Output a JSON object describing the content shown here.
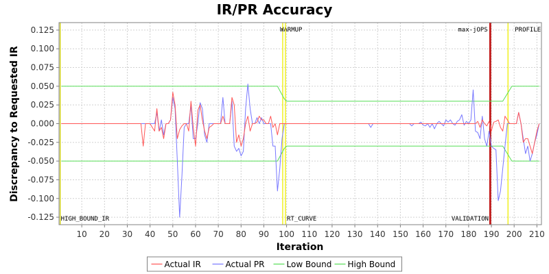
{
  "chart_data": {
    "type": "line",
    "title": "IR/PR Accuracy",
    "xlabel": "Iteration",
    "ylabel": "Discrepancy to Requested IR",
    "xlim": [
      0,
      212
    ],
    "ylim": [
      -0.135,
      0.135
    ],
    "xticks": [
      10,
      20,
      30,
      40,
      50,
      60,
      70,
      80,
      90,
      100,
      110,
      120,
      130,
      140,
      150,
      160,
      170,
      180,
      190,
      200,
      210
    ],
    "xtick_labels": [
      "10",
      "20",
      "30",
      "40",
      "50",
      "60",
      "70",
      "80",
      "90",
      "100",
      "110",
      "120",
      "130",
      "140",
      "150",
      "160",
      "170",
      "180",
      "190",
      "200",
      "210"
    ],
    "yticks": [
      -0.125,
      -0.1,
      -0.075,
      -0.05,
      -0.025,
      0,
      0.025,
      0.05,
      0.075,
      0.1,
      0.125
    ],
    "ytick_labels": [
      "-0.125",
      "-0.100",
      "-0.075",
      "-0.050",
      "-0.025",
      "0.000",
      "0.025",
      "0.050",
      "0.075",
      "0.100",
      "0.125"
    ],
    "grid": true,
    "legend_position": "bottom-center",
    "series": [
      {
        "name": "Actual IR",
        "color": "#ff5555",
        "x": [
          1,
          36,
          37,
          38,
          40,
          42,
          43,
          44,
          45,
          46,
          47,
          48,
          49,
          50,
          51,
          52,
          53,
          54,
          55,
          56,
          57,
          58,
          59,
          60,
          61,
          62,
          63,
          64,
          65,
          66,
          67,
          68,
          69,
          70,
          71,
          72,
          73,
          74,
          75,
          76,
          77,
          78,
          79,
          80,
          81,
          82,
          83,
          84,
          85,
          86,
          87,
          88,
          89,
          90,
          91,
          92,
          93,
          94,
          95,
          96,
          97,
          98,
          99,
          183,
          184,
          185,
          186,
          187,
          188,
          189,
          190,
          191,
          192,
          193,
          194,
          195,
          196,
          197,
          198,
          199,
          200,
          201,
          202,
          203,
          204,
          205,
          206,
          207,
          208,
          209,
          210,
          211
        ],
        "y": [
          0,
          0,
          -0.03,
          0,
          0,
          -0.01,
          0.02,
          -0.01,
          -0.005,
          -0.02,
          0,
          0,
          0.005,
          0.042,
          0.025,
          -0.02,
          -0.008,
          -0.003,
          0,
          0,
          -0.01,
          0.03,
          -0.005,
          -0.03,
          0.018,
          0.025,
          0.005,
          -0.01,
          -0.02,
          -0.005,
          -0.003,
          0,
          0,
          0,
          0,
          0.01,
          0,
          0,
          0,
          0.035,
          0.025,
          -0.025,
          -0.015,
          -0.03,
          -0.02,
          0,
          0.01,
          -0.01,
          0,
          0,
          0.002,
          0.01,
          0.005,
          0.005,
          0,
          0,
          0.01,
          -0.005,
          0,
          -0.015,
          0,
          0,
          0,
          0,
          0.003,
          -0.005,
          0.005,
          0,
          -0.003,
          0.003,
          -0.01,
          0.002,
          0.003,
          0.005,
          -0.005,
          -0.01,
          0.01,
          0.005,
          0,
          0,
          0,
          0,
          0.015,
          0,
          -0.025,
          -0.02,
          -0.02,
          -0.03,
          -0.04,
          -0.025,
          -0.01,
          0
        ]
      },
      {
        "name": "Actual PR",
        "color": "#7777ff",
        "x": [
          1,
          42,
          43,
          44,
          45,
          46,
          47,
          48,
          49,
          50,
          51,
          52,
          53,
          54,
          55,
          56,
          57,
          58,
          59,
          60,
          61,
          62,
          63,
          64,
          65,
          66,
          67,
          68,
          69,
          70,
          71,
          72,
          73,
          74,
          75,
          76,
          77,
          78,
          79,
          80,
          81,
          82,
          83,
          84,
          85,
          86,
          87,
          88,
          89,
          90,
          91,
          92,
          93,
          94,
          95,
          96,
          97,
          98,
          99,
          136,
          137,
          138,
          153,
          154,
          155,
          156,
          157,
          158,
          159,
          160,
          161,
          162,
          163,
          164,
          165,
          166,
          167,
          168,
          169,
          170,
          171,
          172,
          173,
          174,
          175,
          176,
          177,
          178,
          179,
          180,
          181,
          182,
          183,
          184,
          185,
          186,
          187,
          188,
          189,
          190,
          191,
          192,
          193,
          194,
          195,
          196,
          197,
          198,
          199,
          200,
          201,
          202,
          203,
          204,
          205,
          206,
          207,
          208,
          209,
          210,
          211
        ],
        "y": [
          0,
          0,
          0.015,
          -0.01,
          0.005,
          -0.015,
          0,
          0,
          0.005,
          0.035,
          0.02,
          -0.05,
          -0.125,
          -0.07,
          -0.005,
          0,
          0,
          0.025,
          -0.02,
          -0.02,
          0,
          0.028,
          0.02,
          -0.015,
          -0.025,
          0,
          0,
          0,
          0,
          0,
          0,
          0.035,
          0,
          0,
          0,
          0.03,
          -0.03,
          -0.037,
          -0.033,
          -0.043,
          -0.037,
          0.02,
          0.053,
          0.02,
          0,
          0,
          0.008,
          0,
          0.008,
          0,
          0,
          0,
          0,
          -0.03,
          -0.03,
          -0.09,
          -0.06,
          -0.02,
          0,
          0,
          -0.005,
          0,
          0,
          0,
          -0.003,
          0,
          0,
          0,
          0.002,
          -0.002,
          -0.003,
          0,
          -0.005,
          0,
          -0.007,
          0,
          0.003,
          0,
          -0.003,
          0.005,
          0.002,
          0.005,
          0,
          -0.002,
          0.003,
          0.005,
          0.012,
          -0.002,
          0.003,
          0,
          0.005,
          0.045,
          -0.01,
          -0.012,
          -0.02,
          0.01,
          -0.02,
          -0.03,
          -0.01,
          -0.03,
          -0.033,
          -0.035,
          -0.103,
          -0.09,
          -0.06,
          -0.03,
          0,
          0,
          0,
          0,
          0,
          0.015,
          0,
          -0.02,
          -0.04,
          -0.03,
          -0.05,
          -0.04,
          -0.025,
          -0.015,
          0
        ]
      },
      {
        "name": "Low Bound",
        "color": "#55dd55",
        "x": [
          1,
          96,
          99,
          100,
          195,
          197,
          199,
          211
        ],
        "y": [
          -0.05,
          -0.05,
          -0.033,
          -0.03,
          -0.03,
          -0.04,
          -0.05,
          -0.05
        ]
      },
      {
        "name": "High Bound",
        "color": "#55dd55",
        "x": [
          1,
          96,
          99,
          100,
          195,
          197,
          199,
          211
        ],
        "y": [
          0.05,
          0.05,
          0.033,
          0.03,
          0.03,
          0.04,
          0.05,
          0.05
        ]
      }
    ],
    "markers": [
      {
        "label": "HIGH_BOUND_IR",
        "x": 0.5,
        "color": "#cccc00",
        "position": "bottom"
      },
      {
        "label": "WARMUP",
        "x": 98.3,
        "color": "#eeee00",
        "position": "top"
      },
      {
        "label": "RT_CURVE",
        "x": 99.5,
        "color": "#eeee00",
        "position": "bottom"
      },
      {
        "label": "max-jOPS",
        "x": 189.3,
        "color": "#bb0000",
        "position": "top"
      },
      {
        "label": "VALIDATION",
        "x": 189.7,
        "color": "#bb0000",
        "position": "bottom"
      },
      {
        "label": "PROFILE",
        "x": 197.3,
        "color": "#eeee00",
        "position": "top"
      }
    ]
  }
}
